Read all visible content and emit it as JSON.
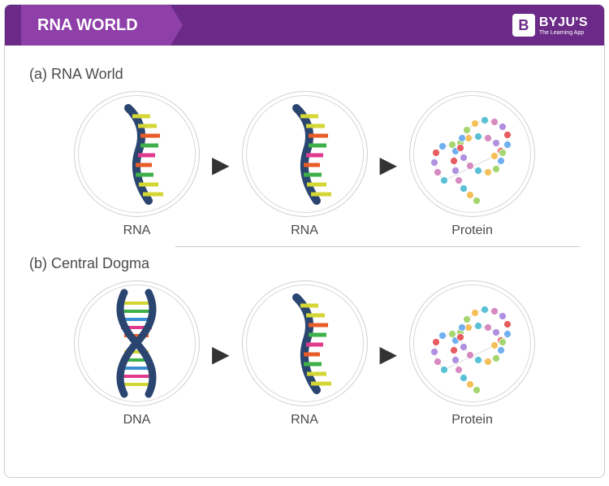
{
  "header": {
    "title": "RNA WORLD",
    "title_bg": "#8e3fa8",
    "header_bg": "#6b2a87",
    "logo_prefix": "B",
    "logo_text": "BYJU'S",
    "logo_subtitle": "The Learning App"
  },
  "sections": {
    "a": {
      "label": "(a) RNA World"
    },
    "b": {
      "label": "(b) Central Dogma"
    }
  },
  "row_a": {
    "nodes": [
      {
        "type": "rna",
        "label": "RNA"
      },
      {
        "type": "rna",
        "label": "RNA"
      },
      {
        "type": "protein",
        "label": "Protein"
      }
    ]
  },
  "row_b": {
    "nodes": [
      {
        "type": "dna",
        "label": "DNA"
      },
      {
        "type": "rna",
        "label": "RNA"
      },
      {
        "type": "protein",
        "label": "Protein"
      }
    ]
  },
  "colors": {
    "strand": "#2a4570",
    "bases": [
      "#d4d634",
      "#e85c28",
      "#3db04a",
      "#e03a8c",
      "#3a8fd4"
    ],
    "protein_beads": [
      "#a5d670",
      "#f5c05a",
      "#5ac0d6",
      "#d68ac0",
      "#b090e0",
      "#e85c60",
      "#70b0f0"
    ],
    "circle_border": "#d0d0d0",
    "text": "#4a4a4a",
    "arrow": "#333333"
  },
  "layout": {
    "circle_diameter": 155,
    "inner_circle_diameter": 143,
    "arrow_glyph": "▶"
  }
}
